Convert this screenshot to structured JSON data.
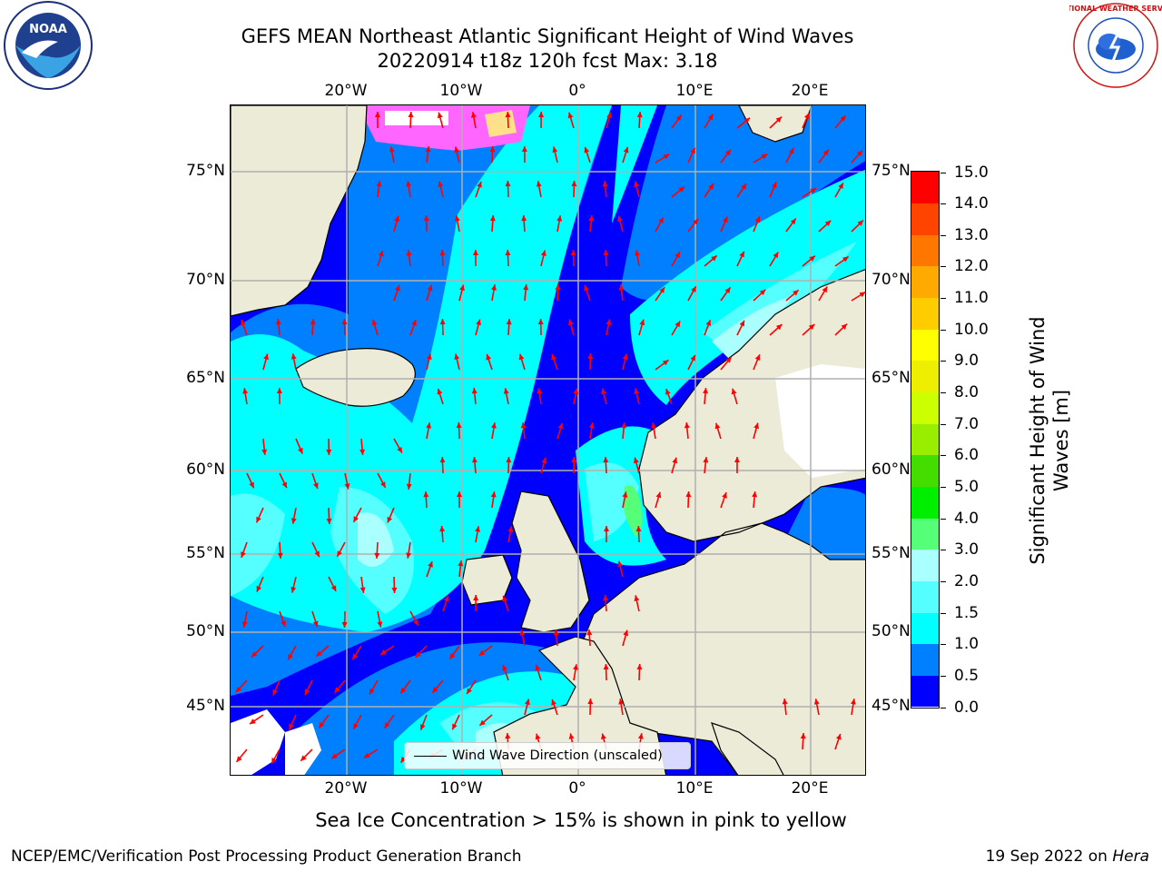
{
  "header": {
    "title_line1": "GEFS MEAN Northeast Atlantic Significant Height of Wind Waves",
    "title_line2": "20220914 t18z 120h fcst   Max: 3.18"
  },
  "logos": {
    "left": {
      "name": "noaa-logo",
      "text": "NOAA"
    },
    "right": {
      "name": "nws-logo",
      "text": "NATIONAL WEATHER SERVICE"
    }
  },
  "map": {
    "lon_ticks": [
      "20°W",
      "10°W",
      "0°",
      "10°E",
      "20°E"
    ],
    "lat_ticks": [
      "75°N",
      "70°N",
      "65°N",
      "60°N",
      "55°N",
      "50°N",
      "45°N"
    ],
    "colors": {
      "land": "#ecebd8",
      "grid": "#b0b0b0",
      "arrows": "#ff0000",
      "ice": "#ff66ff",
      "ice_core": "#ffe08a"
    },
    "legend_label": "Wind Wave Direction (unscaled)"
  },
  "colorbar": {
    "title": "Significant Height of Wind Waves [m]",
    "labels": [
      "15.0",
      "14.0",
      "13.0",
      "12.0",
      "11.0",
      "10.0",
      "9.0",
      "8.0",
      "7.0",
      "6.0",
      "5.0",
      "4.0",
      "3.0",
      "2.0",
      "1.5",
      "1.0",
      "0.5",
      "0.0"
    ],
    "colors": [
      "#0000ff",
      "#0080ff",
      "#00ffff",
      "#55ffff",
      "#aaffff",
      "#55ff77",
      "#00ee00",
      "#44dd00",
      "#99ee00",
      "#ccff00",
      "#eeee00",
      "#ffff00",
      "#ffcc00",
      "#ffaa00",
      "#ff7700",
      "#ff4400",
      "#ff0000"
    ]
  },
  "note": "Sea Ice Concentration > 15% is shown in pink to yellow",
  "footer": {
    "left": "NCEP/EMC/Verification Post Processing Product Generation Branch",
    "right_date": "19 Sep 2022 on ",
    "right_host": "Hera"
  }
}
